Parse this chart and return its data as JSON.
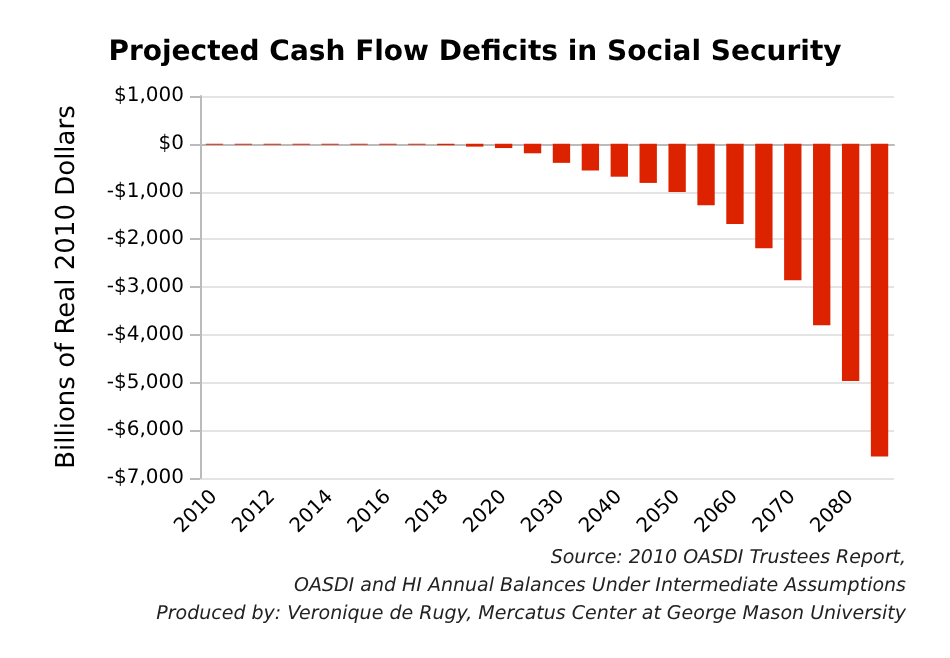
{
  "chart_data": {
    "type": "bar",
    "title": "Projected Cash Flow Deficits in Social Security",
    "ylabel": "Billions of Real 2010 Dollars",
    "categories": [
      "2010",
      null,
      "2012",
      null,
      "2014",
      null,
      "2016",
      null,
      "2018",
      null,
      "2020",
      null,
      "2030",
      null,
      "2040",
      null,
      "2050",
      null,
      "2060",
      null,
      "2070",
      null,
      "2080",
      null
    ],
    "values": [
      -20,
      -20,
      -20,
      -20,
      -20,
      -20,
      -20,
      -20,
      -30,
      -60,
      -90,
      -200,
      -400,
      -560,
      -690,
      -820,
      -1010,
      -1290,
      -1680,
      -2190,
      -2860,
      -3800,
      -4970,
      -6550
    ],
    "color": "#dd2200",
    "ylim": [
      -7000,
      1000
    ],
    "yticks": [
      {
        "value": 1000,
        "label": "$1,000"
      },
      {
        "value": 0,
        "label": "$0"
      },
      {
        "value": -1000,
        "label": "-$1,000"
      },
      {
        "value": -2000,
        "label": "-$2,000"
      },
      {
        "value": -3000,
        "label": "-$3,000"
      },
      {
        "value": -4000,
        "label": "-$4,000"
      },
      {
        "value": -5000,
        "label": "-$5,000"
      },
      {
        "value": -6000,
        "label": "-$6,000"
      },
      {
        "value": -7000,
        "label": "-$7,000"
      }
    ],
    "grid": "y",
    "annotations": [
      "Source: 2010 OASDI Trustees Report,",
      "OASDI and HI Annual Balances Under Intermediate Assumptions",
      "Produced by: Veronique de Rugy, Mercatus Center at George Mason University"
    ]
  }
}
